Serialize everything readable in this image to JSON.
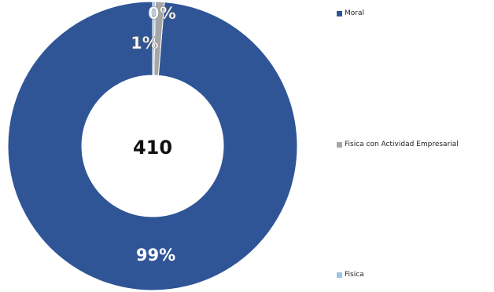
{
  "chart_data": {
    "type": "pie",
    "donut": true,
    "center_label": "410",
    "legend_position": "right",
    "slices": [
      {
        "name": "Moral",
        "value": 99,
        "label": "99%",
        "color": "#2f5597"
      },
      {
        "name": "Fisica con Actividad Empresarial",
        "value": 1,
        "label": "1%",
        "color": "#a6a6a6"
      },
      {
        "name": "Fisica",
        "value": 0.3,
        "label": "0%",
        "color": "#9dc3e6"
      }
    ],
    "label_color": "#ffffff"
  }
}
